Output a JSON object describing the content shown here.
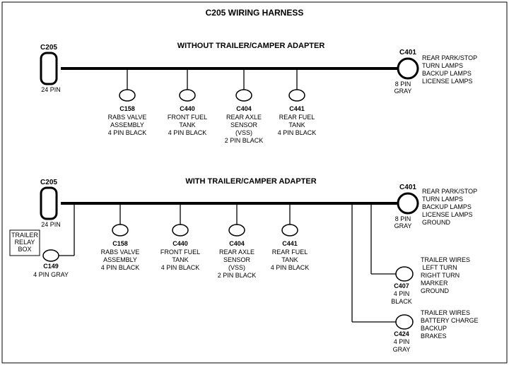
{
  "title": "C205 WIRING HARNESS",
  "section1": {
    "heading": "WITHOUT  TRAILER/CAMPER  ADAPTER",
    "left_conn": {
      "id": "C205",
      "pins": "24 PIN"
    },
    "right_conn": {
      "id": "C401",
      "pins": "8 PIN",
      "color": "GRAY",
      "lines": [
        "REAR PARK/STOP",
        "TURN LAMPS",
        "BACKUP LAMPS",
        "LICENSE LAMPS"
      ]
    },
    "drops": [
      {
        "id": "C158",
        "lines": [
          "RABS VALVE",
          "ASSEMBLY",
          "4 PIN BLACK"
        ]
      },
      {
        "id": "C440",
        "lines": [
          "FRONT FUEL",
          "TANK",
          "4 PIN BLACK"
        ]
      },
      {
        "id": "C404",
        "lines": [
          "REAR AXLE",
          "SENSOR",
          "(VSS)",
          "2 PIN BLACK"
        ]
      },
      {
        "id": "C441",
        "lines": [
          "REAR FUEL",
          "TANK",
          "4 PIN BLACK"
        ]
      }
    ]
  },
  "section2": {
    "heading": "WITH TRAILER/CAMPER  ADAPTER",
    "left_conn": {
      "id": "C205",
      "pins": "24 PIN"
    },
    "right_conn": {
      "id": "C401",
      "pins": "8 PIN",
      "color": "GRAY",
      "lines": [
        "REAR PARK/STOP",
        "TURN LAMPS",
        "BACKUP LAMPS",
        "LICENSE LAMPS",
        "GROUND"
      ]
    },
    "drops": [
      {
        "id": "C158",
        "lines": [
          "RABS VALVE",
          "ASSEMBLY",
          "4 PIN BLACK"
        ]
      },
      {
        "id": "C440",
        "lines": [
          "FRONT FUEL",
          "TANK",
          "4 PIN BLACK"
        ]
      },
      {
        "id": "C404",
        "lines": [
          "REAR AXLE",
          "SENSOR",
          "(VSS)",
          "2 PIN BLACK"
        ]
      },
      {
        "id": "C441",
        "lines": [
          "REAR FUEL",
          "TANK",
          "4 PIN BLACK"
        ]
      }
    ],
    "trailer_relay": {
      "label": "TRAILER\nRELAY\nBOX",
      "id": "C149",
      "pins": "4 PIN GRAY"
    },
    "c407": {
      "id": "C407",
      "pins": "4 PIN",
      "color": "BLACK",
      "lines": [
        "TRAILER WIRES",
        " LEFT TURN",
        "RIGHT TURN",
        "MARKER",
        "GROUND"
      ]
    },
    "c424": {
      "id": "C424",
      "pins": "4 PIN",
      "color": "GRAY",
      "lines": [
        "TRAILER  WIRES",
        "BATTERY CHARGE",
        "BACKUP",
        "BRAKES"
      ]
    }
  },
  "style": {
    "bus_stroke": 4,
    "thin_stroke": 1.3,
    "font_title": 12,
    "font_heading": 11,
    "font_id": 10,
    "font_small": 9
  }
}
